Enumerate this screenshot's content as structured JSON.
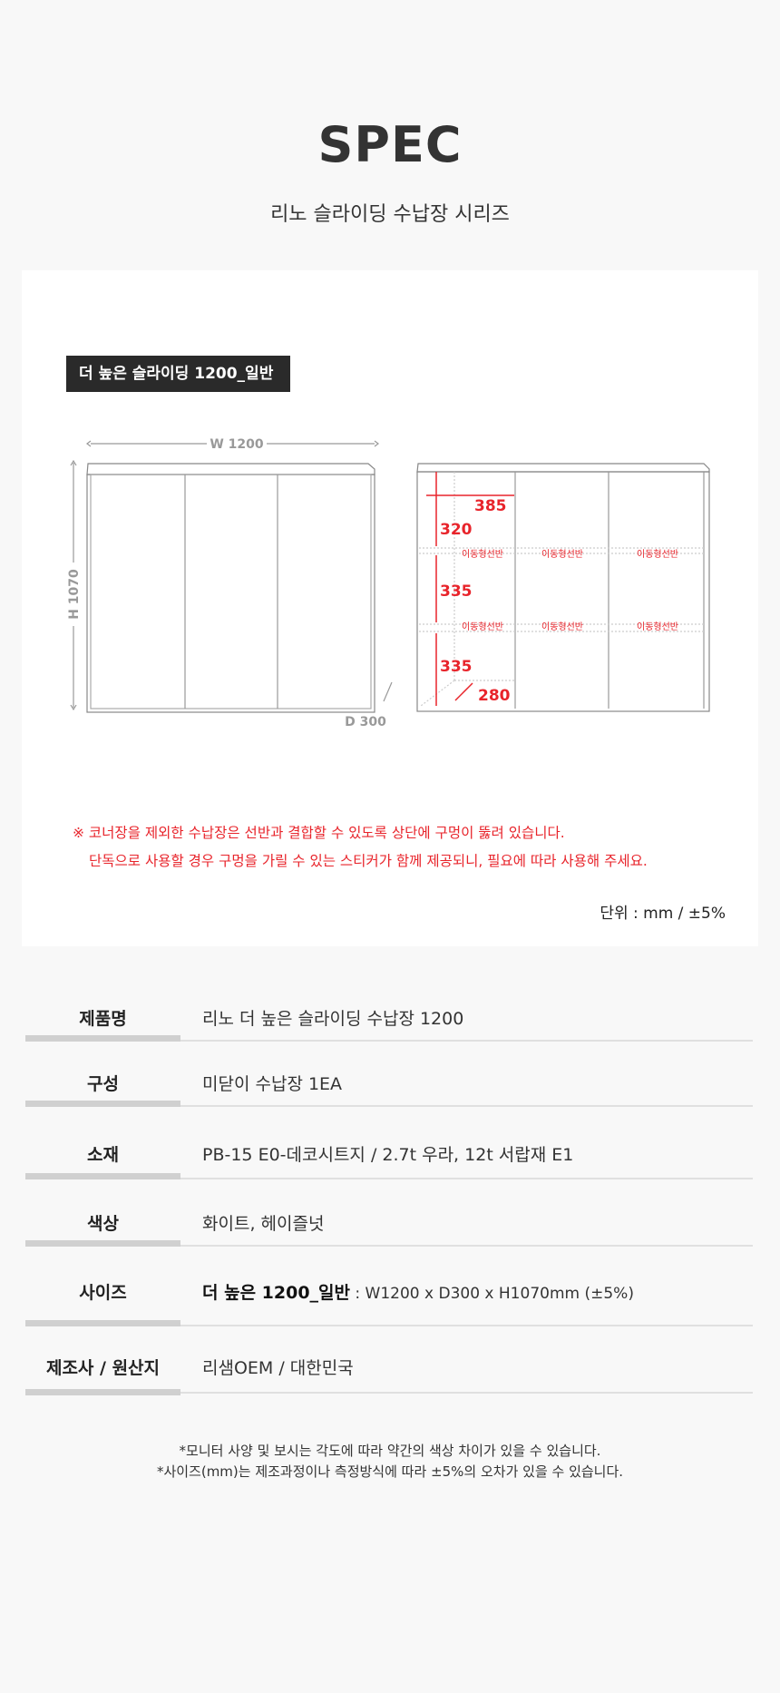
{
  "header": {
    "title": "SPEC",
    "subtitle": "리노 슬라이딩 수납장 시리즈"
  },
  "spec_panel": {
    "model_label": "더 높은 슬라이딩 1200_일반",
    "front": {
      "width": "W 1200",
      "height": "H 1070",
      "depth": "D 300"
    },
    "interior": {
      "col_width": "385",
      "h1": "320",
      "h2": "335",
      "h3": "335",
      "depth": "280",
      "shelf_label": "이동형선반"
    },
    "notes": [
      "※ 코너장을 제외한 수납장은 선반과 결합할 수 있도록 상단에 구멍이 뚫려 있습니다.",
      "단독으로 사용할 경우 구멍을 가릴 수 있는 스티커가 함께 제공되니, 필요에 따라 사용해 주세요."
    ],
    "unit": "단위 : mm /  ±5%"
  },
  "spec_table": [
    {
      "label": "제품명",
      "value": "리노 더 높은 슬라이딩 수납장 1200"
    },
    {
      "label": "구성",
      "value": "미닫이 수납장 1EA"
    },
    {
      "label": "소재",
      "value": "PB-15 E0-데코시트지 / 2.7t 우라, 12t 서랍재 E1"
    },
    {
      "label": "색상",
      "value": "화이트, 헤이즐넛"
    },
    {
      "label": "사이즈",
      "value_bold": "더 높은 1200_일반",
      "value": " : W1200 x D300 x H1070mm (±5%)"
    },
    {
      "label": "제조사 / 원산지",
      "value": "리샘OEM / 대한민국"
    }
  ],
  "footer": [
    "*모니터 사양 및 보시는 각도에 따라 약간의 색상 차이가 있을 수 있습니다.",
    "*사이즈(mm)는 제조과정이나 측정방식에 따라 ±5%의 오차가 있을 수 있습니다."
  ],
  "colors": {
    "accent_red": "#e8242b",
    "label_bg": "#2a2a2a"
  }
}
